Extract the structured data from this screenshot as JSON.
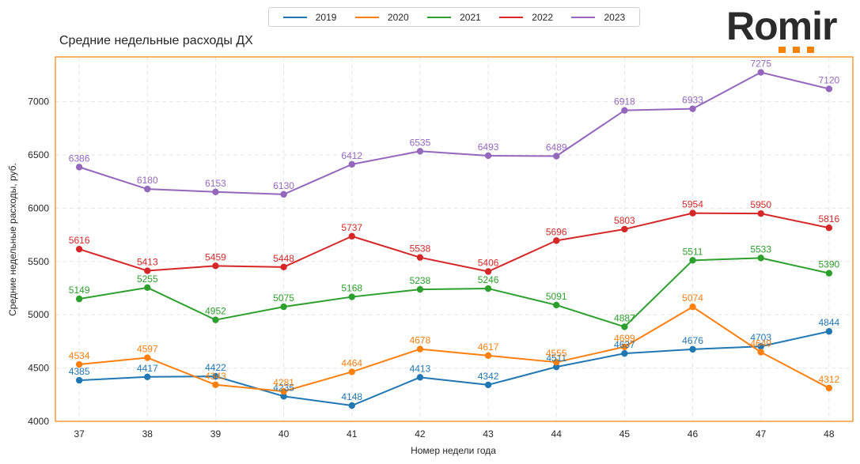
{
  "logo": {
    "text": "Romir",
    "dots": 3,
    "dot_color": "#f5820b"
  },
  "chart_data": {
    "type": "line",
    "title": "Средние недельные расходы ДХ",
    "xlabel": "Номер недели года",
    "ylabel": "Средние недельные расходы, руб.",
    "x": [
      37,
      38,
      39,
      40,
      41,
      42,
      43,
      44,
      45,
      46,
      47,
      48
    ],
    "xticks": [
      "37",
      "38",
      "39",
      "40",
      "41",
      "42",
      "43",
      "44",
      "45",
      "46",
      "47",
      "48"
    ],
    "yticks": [
      "4000",
      "4500",
      "5000",
      "5500",
      "6000",
      "6500",
      "7000"
    ],
    "ytick_values": [
      4000,
      4500,
      5000,
      5500,
      6000,
      6500,
      7000
    ],
    "ylim": [
      4000,
      7420
    ],
    "xlim": [
      36.65,
      48.35
    ],
    "grid": true,
    "grid_style": "dashed",
    "frame_color": "#f5820b",
    "legend_position": "top-center",
    "series": [
      {
        "name": "2019",
        "color": "#1f77b4",
        "values": [
          4385,
          4417,
          4422,
          4235,
          4148,
          4413,
          4342,
          4511,
          4637,
          4676,
          4703,
          4844
        ]
      },
      {
        "name": "2020",
        "color": "#ff7f0e",
        "values": [
          4534,
          4597,
          4343,
          4281,
          4464,
          4678,
          4617,
          4555,
          4699,
          5074,
          4649,
          4312
        ]
      },
      {
        "name": "2021",
        "color": "#2ca02c",
        "values": [
          5149,
          5255,
          4952,
          5075,
          5168,
          5238,
          5246,
          5091,
          4887,
          5511,
          5533,
          5390
        ]
      },
      {
        "name": "2022",
        "color": "#d62728",
        "values": [
          5616,
          5413,
          5459,
          5448,
          5737,
          5538,
          5406,
          5696,
          5803,
          5954,
          5950,
          5816
        ]
      },
      {
        "name": "2023",
        "color": "#9467bd",
        "values": [
          6386,
          6180,
          6153,
          6130,
          6412,
          6535,
          6493,
          6489,
          6918,
          6933,
          7275,
          7120
        ]
      }
    ]
  }
}
